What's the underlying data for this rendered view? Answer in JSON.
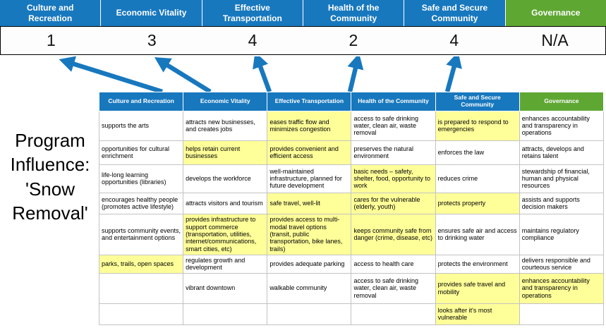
{
  "title": "Program\nInfluence:\n'Snow\nRemoval'",
  "colors": {
    "header_blue": "#1878BE",
    "header_green": "#5FA733",
    "highlight_yellow": "#FFFF99",
    "arrow_blue": "#1878BE"
  },
  "scoreboard": {
    "columns": [
      {
        "label": "Culture and Recreation",
        "score": "1",
        "theme": "blue"
      },
      {
        "label": "Economic Vitality",
        "score": "3",
        "theme": "blue"
      },
      {
        "label": "Effective Transportation",
        "score": "4",
        "theme": "blue"
      },
      {
        "label": "Health of the Community",
        "score": "2",
        "theme": "blue"
      },
      {
        "label": "Safe and Secure Community",
        "score": "4",
        "theme": "blue"
      },
      {
        "label": "Governance",
        "score": "N/A",
        "theme": "green"
      }
    ]
  },
  "matrix": {
    "headers": [
      {
        "label": "Culture and Recreation",
        "theme": "blue"
      },
      {
        "label": "Economic Vitality",
        "theme": "blue"
      },
      {
        "label": "Effective Transportation",
        "theme": "blue"
      },
      {
        "label": "Health of the Community",
        "theme": "blue"
      },
      {
        "label": "Safe and Secure Community",
        "theme": "blue"
      },
      {
        "label": "Governance",
        "theme": "green"
      }
    ],
    "rows": [
      [
        {
          "text": "supports the arts",
          "highlight": false
        },
        {
          "text": "attracts new businesses, and creates jobs",
          "highlight": false
        },
        {
          "text": "eases traffic flow and minimizes congestion",
          "highlight": true
        },
        {
          "text": "access to safe drinking water, clean air, waste removal",
          "highlight": false
        },
        {
          "text": "is prepared to respond to emergencies",
          "highlight": true
        },
        {
          "text": "enhances accountability and transparency in operations",
          "highlight": false
        }
      ],
      [
        {
          "text": "opportunities for cultural enrichment",
          "highlight": false
        },
        {
          "text": "helps retain current businesses",
          "highlight": true
        },
        {
          "text": "provides convenient and efficient access",
          "highlight": true
        },
        {
          "text": "preserves the natural environment",
          "highlight": false
        },
        {
          "text": "enforces the law",
          "highlight": false
        },
        {
          "text": "attracts, develops and retains talent",
          "highlight": false
        }
      ],
      [
        {
          "text": "life-long learning opportunities (libraries)",
          "highlight": false
        },
        {
          "text": "develops the workforce",
          "highlight": false
        },
        {
          "text": "well-maintained infrastructure, planned for future development",
          "highlight": false
        },
        {
          "text": "basic needs – safety, shelter, food, opportunity to work",
          "highlight": true
        },
        {
          "text": "reduces crime",
          "highlight": false
        },
        {
          "text": "stewardship of financial, human and physical resources",
          "highlight": false
        }
      ],
      [
        {
          "text": "encourages healthy people (promotes active lifestyle)",
          "highlight": false
        },
        {
          "text": "attracts visitors and tourism",
          "highlight": false
        },
        {
          "text": "safe travel, well-lit",
          "highlight": true
        },
        {
          "text": "cares for the vulnerable (elderly, youth)",
          "highlight": true
        },
        {
          "text": "protects property",
          "highlight": true
        },
        {
          "text": "assists and supports decision makers",
          "highlight": false
        }
      ],
      [
        {
          "text": "supports community events, and entertainment options",
          "highlight": false
        },
        {
          "text": "provides infrastructure to support commerce (transportation, utilities, internet/communications, smart cities, etc)",
          "highlight": true
        },
        {
          "text": "provides access to multi-modal travel options (transit, public transportation, bike lanes, trails)",
          "highlight": true
        },
        {
          "text": "keeps community safe from danger (crime, disease, etc)",
          "highlight": true
        },
        {
          "text": "ensures safe air and access to drinking water",
          "highlight": false
        },
        {
          "text": "maintains regulatory compliance",
          "highlight": false
        }
      ],
      [
        {
          "text": "parks, trails, open spaces",
          "highlight": true
        },
        {
          "text": "regulates growth and development",
          "highlight": false
        },
        {
          "text": "provides adequate parking",
          "highlight": false
        },
        {
          "text": "access to health care",
          "highlight": false
        },
        {
          "text": "protects the environment",
          "highlight": false
        },
        {
          "text": "delivers responsible and courteous service",
          "highlight": false
        }
      ],
      [
        {
          "text": "",
          "highlight": false
        },
        {
          "text": "vibrant downtown",
          "highlight": false
        },
        {
          "text": "walkable community",
          "highlight": false
        },
        {
          "text": "access to safe drinking water, clean air, waste removal",
          "highlight": false
        },
        {
          "text": "provides safe travel and mobility",
          "highlight": true
        },
        {
          "text": "enhances accountability and transparency in operations",
          "highlight": true
        }
      ],
      [
        {
          "text": "",
          "highlight": false
        },
        {
          "text": "",
          "highlight": false
        },
        {
          "text": "",
          "highlight": false
        },
        {
          "text": "",
          "highlight": false
        },
        {
          "text": "looks after it's most vulnerable",
          "highlight": true
        },
        {
          "text": "",
          "highlight": false
        }
      ]
    ]
  }
}
